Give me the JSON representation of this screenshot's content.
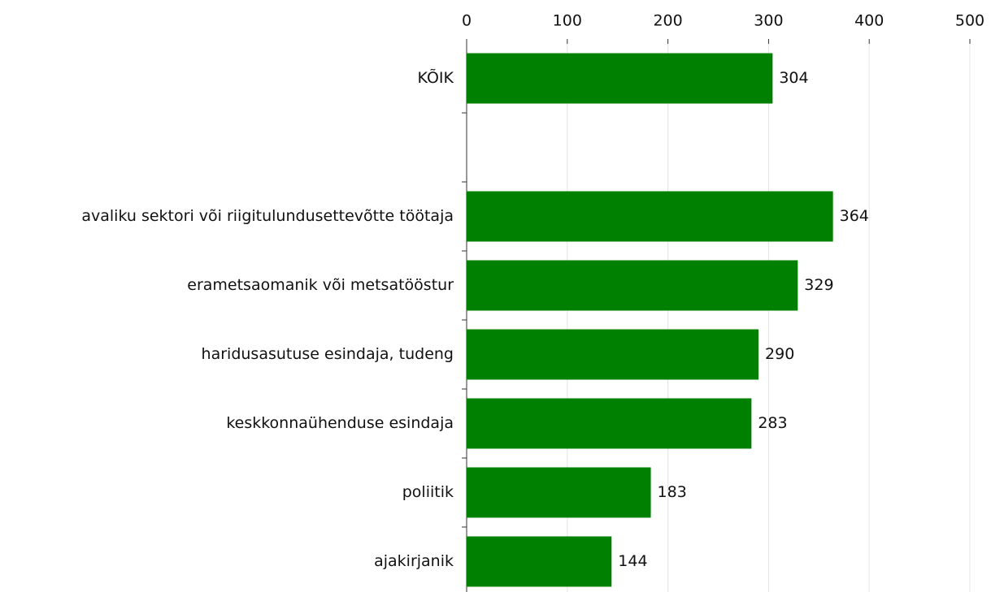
{
  "chart_data": {
    "type": "bar",
    "orientation": "horizontal",
    "categories": [
      "KÕIK",
      null,
      "avaliku sektori või riigitulundusettevõtte töötaja",
      "erametsaomanik või metsatööstur",
      "haridusasutuse esindaja, tudeng",
      "keskkonnaühenduse esindaja",
      "poliitik",
      "ajakirjanik"
    ],
    "values": [
      304,
      null,
      364,
      329,
      290,
      283,
      183,
      144
    ],
    "color": "#008000",
    "xlim": [
      0,
      500
    ],
    "xticks": [
      0,
      100,
      200,
      300,
      400,
      500
    ],
    "grid": true
  }
}
